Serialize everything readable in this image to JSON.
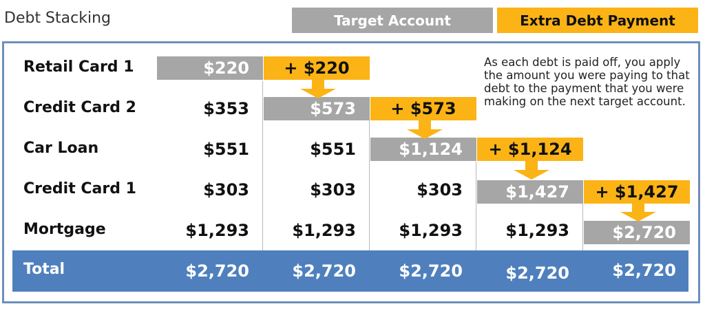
{
  "title": "Debt Stacking",
  "legend": {
    "target_label": "Target Account",
    "extra_label": "Extra Debt Payment",
    "target_color": "#a6a6a6",
    "extra_color": "#fbb316"
  },
  "note": "As each debt is paid off, you apply the amount you were paying to that debt to the payment that you were making on the next target account.",
  "rows": [
    {
      "label": "Retail Card 1",
      "cells": [
        "$220",
        "+ $220",
        "",
        "",
        ""
      ]
    },
    {
      "label": "Credit Card 2",
      "cells": [
        "$353",
        "$573",
        "+ $573",
        "",
        ""
      ]
    },
    {
      "label": "Car Loan",
      "cells": [
        "$551",
        "$551",
        "$1,124",
        "+ $1,124",
        ""
      ]
    },
    {
      "label": "Credit Card 1",
      "cells": [
        "$303",
        "$303",
        "$303",
        "$1,427",
        "+ $1,427"
      ]
    },
    {
      "label": "Mortgage",
      "cells": [
        "$1,293",
        "$1,293",
        "$1,293",
        "$1,293",
        "$2,720"
      ]
    }
  ],
  "total": {
    "label": "Total",
    "cells": [
      "$2,720",
      "$2,720",
      "$2,720",
      "$2,720",
      "$2,720"
    ]
  },
  "colors": {
    "frame": "#6c8fbd",
    "total_band": "#4f80bd"
  }
}
